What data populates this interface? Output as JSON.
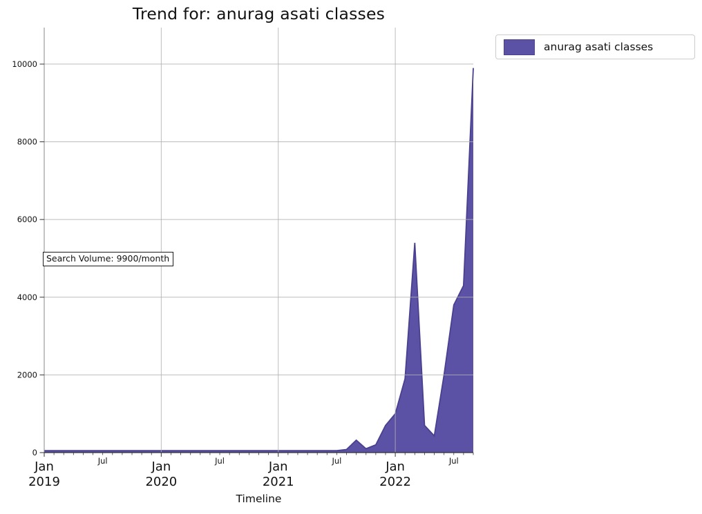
{
  "chart_data": {
    "type": "area",
    "title": "Trend for: anurag asati classes",
    "xlabel": "Timeline",
    "ylabel": "",
    "legend": [
      "anurag asati classes"
    ],
    "legend_position": "upper right outside",
    "grid": true,
    "ylim": [
      0,
      10940
    ],
    "yticks": [
      0,
      2000,
      4000,
      6000,
      8000,
      10000
    ],
    "x_major_tick_month_label": "Jan",
    "x_minor_tick_month_label": "Jul",
    "x_major_tick_years": [
      "2019",
      "2020",
      "2021",
      "2022"
    ],
    "annotation": {
      "text": "Search Volume: 9900/month"
    },
    "colors": {
      "fill": "#5b51a5",
      "edge": "#49408f",
      "grid": "#b0b0b0",
      "spine_left": "#888888",
      "spine_bottom": "#333333",
      "text": "#111111"
    },
    "x": [
      "2019-01",
      "2019-02",
      "2019-03",
      "2019-04",
      "2019-05",
      "2019-06",
      "2019-07",
      "2019-08",
      "2019-09",
      "2019-10",
      "2019-11",
      "2019-12",
      "2020-01",
      "2020-02",
      "2020-03",
      "2020-04",
      "2020-05",
      "2020-06",
      "2020-07",
      "2020-08",
      "2020-09",
      "2020-10",
      "2020-11",
      "2020-12",
      "2021-01",
      "2021-02",
      "2021-03",
      "2021-04",
      "2021-05",
      "2021-06",
      "2021-07",
      "2021-08",
      "2021-09",
      "2021-10",
      "2021-11",
      "2021-12",
      "2022-01",
      "2022-02",
      "2022-03",
      "2022-04",
      "2022-05",
      "2022-06",
      "2022-07",
      "2022-08",
      "2022-09"
    ],
    "values": [
      50,
      50,
      50,
      50,
      50,
      50,
      50,
      50,
      50,
      50,
      50,
      50,
      50,
      50,
      50,
      50,
      50,
      50,
      50,
      50,
      50,
      50,
      50,
      50,
      50,
      50,
      50,
      50,
      50,
      50,
      50,
      80,
      320,
      100,
      200,
      700,
      1000,
      1900,
      5400,
      700,
      430,
      2000,
      3800,
      4300,
      9900
    ],
    "last_point_value": 9900
  }
}
